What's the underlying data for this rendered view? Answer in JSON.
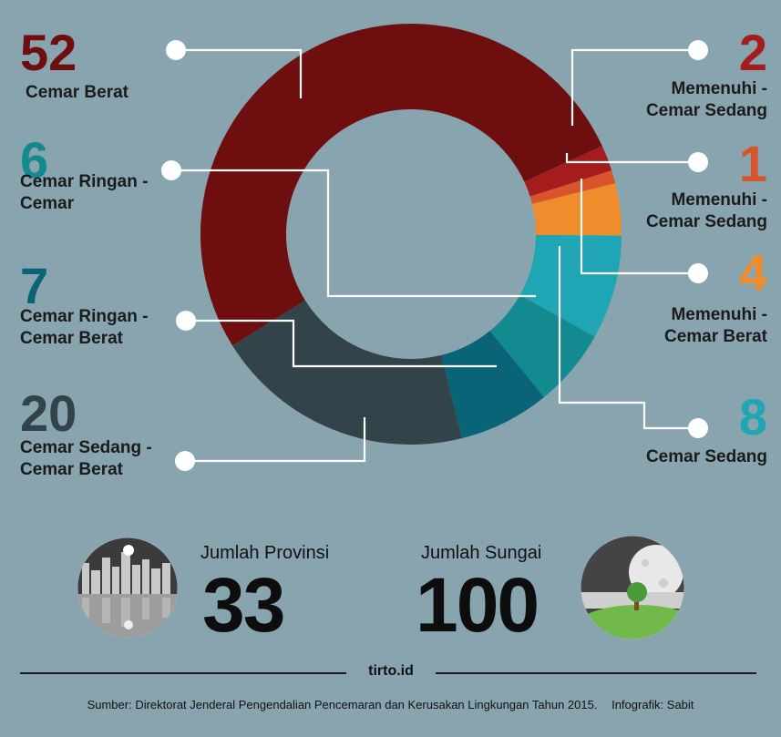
{
  "chart_data": {
    "type": "donut",
    "total": 100,
    "colors": {
      "slice_1": "#6e0e0e",
      "slice_2": "#a51c1c",
      "slice_3": "#d9542a",
      "slice_4": "#ef8c2c",
      "slice_5": "#1fa5b4",
      "slice_6": "#138a8f",
      "slice_7": "#0a6478",
      "slice_8": "#324349"
    },
    "slices": [
      {
        "value": 52,
        "value_text": "52",
        "label_lines": [
          "Cemar Berat"
        ]
      },
      {
        "value": 2,
        "value_text": "2",
        "label_lines": [
          "Memenuhi -",
          "Cemar Sedang"
        ]
      },
      {
        "value": 1,
        "value_text": "1",
        "label_lines": [
          "Memenuhi -",
          "Cemar Sedang"
        ]
      },
      {
        "value": 4,
        "value_text": "4",
        "label_lines": [
          "Memenuhi -",
          "Cemar Berat"
        ]
      },
      {
        "value": 8,
        "value_text": "8",
        "label_lines": [
          "Cemar Sedang"
        ]
      },
      {
        "value": 6,
        "value_text": "6",
        "label_lines": [
          "Cemar Ringan -",
          "Cemar"
        ]
      },
      {
        "value": 7,
        "value_text": "7",
        "label_lines": [
          "Cemar Ringan -",
          "Cemar Berat"
        ]
      },
      {
        "value": 20,
        "value_text": "20",
        "label_lines": [
          "Cemar Sedang -",
          "Cemar Berat"
        ]
      }
    ]
  },
  "stats": {
    "provinsi": {
      "label": "Jumlah Provinsi",
      "value": "33"
    },
    "sungai": {
      "label": "Jumlah Sungai",
      "value": "100"
    }
  },
  "footer": {
    "brand": "tirto.id",
    "source": "Sumber: Direktorat Jenderal Pengendalian Pencemaran dan Kerusakan Lingkungan Tahun 2015.",
    "credit": "Infografik: Sabit"
  }
}
